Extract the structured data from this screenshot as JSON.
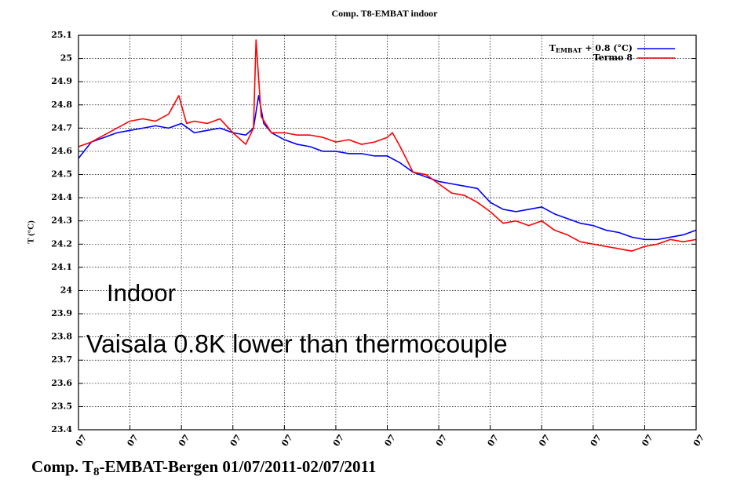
{
  "chart_data": {
    "type": "line",
    "title": "Comp. T8-EMBAT indoor",
    "ylabel": "T (°C)",
    "xlim": [
      0,
      12
    ],
    "xticks": [
      {
        "value": 0,
        "label": "07"
      },
      {
        "value": 1,
        "label": "07"
      },
      {
        "value": 2,
        "label": "07"
      },
      {
        "value": 3,
        "label": "07"
      },
      {
        "value": 4,
        "label": "07"
      },
      {
        "value": 5,
        "label": "07"
      },
      {
        "value": 6,
        "label": "07"
      },
      {
        "value": 7,
        "label": "07"
      },
      {
        "value": 8,
        "label": "07"
      },
      {
        "value": 9,
        "label": "07"
      },
      {
        "value": 10,
        "label": "07"
      },
      {
        "value": 11,
        "label": "07"
      },
      {
        "value": 12,
        "label": "07"
      }
    ],
    "ylim": [
      23.4,
      25.1
    ],
    "yticks": [
      23.4,
      23.5,
      23.6,
      23.7,
      23.8,
      23.9,
      24,
      24.1,
      24.2,
      24.3,
      24.4,
      24.5,
      24.6,
      24.7,
      24.8,
      24.9,
      25,
      25.1
    ],
    "grid": true,
    "legend": "upper right",
    "series": [
      {
        "name": "T",
        "name_subscript": "EMBAT",
        "name_suffix": " + 0.8 (°C)",
        "color": "#0000ff",
        "x": [
          0,
          0.25,
          0.5,
          0.75,
          1,
          1.25,
          1.5,
          1.75,
          2,
          2.25,
          2.5,
          2.75,
          3,
          3.25,
          3.4,
          3.5,
          3.6,
          3.75,
          4,
          4.25,
          4.5,
          4.75,
          5,
          5.25,
          5.5,
          5.75,
          6,
          6.25,
          6.5,
          6.75,
          7,
          7.25,
          7.5,
          7.75,
          8,
          8.25,
          8.5,
          8.75,
          9,
          9.25,
          9.5,
          9.75,
          10,
          10.25,
          10.5,
          10.75,
          11,
          11.25,
          11.5,
          11.75,
          12
        ],
        "values": [
          24.57,
          24.64,
          24.66,
          24.68,
          24.69,
          24.7,
          24.71,
          24.7,
          24.72,
          24.68,
          24.69,
          24.7,
          24.68,
          24.67,
          24.7,
          24.84,
          24.72,
          24.68,
          24.65,
          24.63,
          24.62,
          24.6,
          24.6,
          24.59,
          24.59,
          24.58,
          24.58,
          24.55,
          24.51,
          24.49,
          24.47,
          24.46,
          24.45,
          24.44,
          24.38,
          24.35,
          24.34,
          24.35,
          24.36,
          24.33,
          24.31,
          24.29,
          24.28,
          24.26,
          24.25,
          24.23,
          24.22,
          24.22,
          24.23,
          24.24,
          24.26
        ]
      },
      {
        "name": "Termo 8",
        "color": "#ff0000",
        "x": [
          0,
          0.25,
          0.5,
          0.75,
          1,
          1.25,
          1.5,
          1.75,
          1.95,
          2.1,
          2.25,
          2.5,
          2.75,
          3,
          3.25,
          3.4,
          3.45,
          3.55,
          3.75,
          4,
          4.25,
          4.5,
          4.75,
          5,
          5.25,
          5.5,
          5.75,
          6,
          6.1,
          6.25,
          6.5,
          6.75,
          7,
          7.25,
          7.5,
          7.75,
          8,
          8.25,
          8.5,
          8.75,
          9,
          9.25,
          9.5,
          9.75,
          10,
          10.25,
          10.5,
          10.75,
          11,
          11.25,
          11.5,
          11.75,
          12
        ],
        "values": [
          24.62,
          24.64,
          24.67,
          24.7,
          24.73,
          24.74,
          24.73,
          24.76,
          24.84,
          24.72,
          24.73,
          24.72,
          24.74,
          24.68,
          24.63,
          24.7,
          25.08,
          24.75,
          24.68,
          24.68,
          24.67,
          24.67,
          24.66,
          24.64,
          24.65,
          24.63,
          24.64,
          24.66,
          24.68,
          24.62,
          24.51,
          24.5,
          24.46,
          24.42,
          24.41,
          24.38,
          24.34,
          24.29,
          24.3,
          24.28,
          24.3,
          24.26,
          24.24,
          24.21,
          24.2,
          24.19,
          24.18,
          24.17,
          24.19,
          24.2,
          24.22,
          24.21,
          24.22
        ]
      }
    ],
    "annotations": [
      "Indoor",
      "Vaisala 0.8K lower than thermocouple"
    ],
    "footer": {
      "prefix": "Comp. T",
      "subscript": "8",
      "suffix": "-EMBAT-Bergen 01/07/2011-02/07/2011"
    }
  }
}
